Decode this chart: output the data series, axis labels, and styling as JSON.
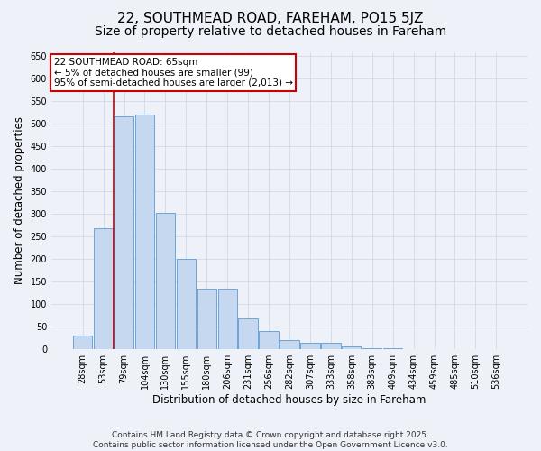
{
  "title": "22, SOUTHMEAD ROAD, FAREHAM, PO15 5JZ",
  "subtitle": "Size of property relative to detached houses in Fareham",
  "xlabel": "Distribution of detached houses by size in Fareham",
  "ylabel": "Number of detached properties",
  "categories": [
    "28sqm",
    "53sqm",
    "79sqm",
    "104sqm",
    "130sqm",
    "155sqm",
    "180sqm",
    "206sqm",
    "231sqm",
    "256sqm",
    "282sqm",
    "307sqm",
    "333sqm",
    "358sqm",
    "383sqm",
    "409sqm",
    "434sqm",
    "459sqm",
    "485sqm",
    "510sqm",
    "536sqm"
  ],
  "values": [
    30,
    268,
    517,
    520,
    302,
    200,
    135,
    135,
    68,
    40,
    20,
    14,
    14,
    7,
    2,
    2,
    0,
    0,
    1,
    0,
    0
  ],
  "bar_color": "#c5d8f0",
  "bar_edge_color": "#5b9bd5",
  "grid_color": "#c8d4e8",
  "background_color": "#eef2f8",
  "vline_x_index": 1.5,
  "vline_color": "#cc0000",
  "annotation_text": "22 SOUTHMEAD ROAD: 65sqm\n← 5% of detached houses are smaller (99)\n95% of semi-detached houses are larger (2,013) →",
  "annotation_box_color": "#cc0000",
  "annotation_text_color": "#000000",
  "ylim": [
    0,
    660
  ],
  "yticks": [
    0,
    50,
    100,
    150,
    200,
    250,
    300,
    350,
    400,
    450,
    500,
    550,
    600,
    650
  ],
  "footnote": "Contains HM Land Registry data © Crown copyright and database right 2025.\nContains public sector information licensed under the Open Government Licence v3.0.",
  "title_fontsize": 11,
  "subtitle_fontsize": 10,
  "xlabel_fontsize": 8.5,
  "ylabel_fontsize": 8.5,
  "tick_fontsize": 7,
  "annotation_fontsize": 7.5,
  "footnote_fontsize": 6.5
}
